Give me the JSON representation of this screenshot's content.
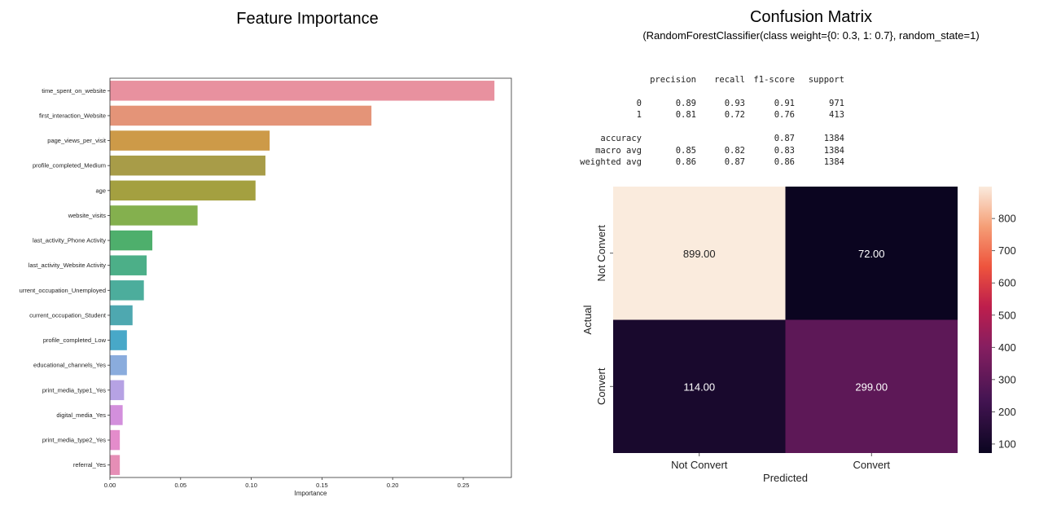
{
  "feature_importance": {
    "title": "Feature Importance",
    "chart_data": {
      "type": "bar",
      "orientation": "horizontal",
      "title": "Feature Importance",
      "xlabel": "Importance",
      "ylabel": "",
      "xlim": [
        0,
        0.284
      ],
      "xticks": [
        "0.00",
        "0.05",
        "0.10",
        "0.15",
        "0.20",
        "0.25"
      ],
      "categories": [
        "time_spent_on_website",
        "first_interaction_Website",
        "page_views_per_visit",
        "profile_completed_Medium",
        "age",
        "website_visits",
        "last_activity_Phone Activity",
        "last_activity_Website Activity",
        "urrent_occupation_Unemployed",
        "current_occupation_Student",
        "profile_completed_Low",
        "educational_channels_Yes",
        "print_media_type1_Yes",
        "digital_media_Yes",
        "print_media_type2_Yes",
        "referral_Yes"
      ],
      "values": [
        0.272,
        0.185,
        0.113,
        0.11,
        0.103,
        0.062,
        0.03,
        0.026,
        0.024,
        0.016,
        0.012,
        0.012,
        0.01,
        0.009,
        0.007,
        0.007
      ],
      "colors": [
        "#e8919f",
        "#e49478",
        "#cd9a48",
        "#a89c48",
        "#a4a040",
        "#84b04e",
        "#4eaf6c",
        "#4caf88",
        "#4cad9c",
        "#4ea8b0",
        "#48a8c8",
        "#8aacdd",
        "#b6a2e4",
        "#d38fdc",
        "#e48ccb",
        "#e68eb6"
      ],
      "grid": false
    }
  },
  "confusion_matrix": {
    "title": "Confusion Matrix",
    "subtitle": "(RandomForestClassifier(class weight={0: 0.3, 1: 0.7}, random_state=1)",
    "report": {
      "headers": [
        "precision",
        "recall",
        "f1-score",
        "support"
      ],
      "rows": [
        {
          "label": "0",
          "values": [
            "0.89",
            "0.93",
            "0.91",
            "971"
          ]
        },
        {
          "label": "1",
          "values": [
            "0.81",
            "0.72",
            "0.76",
            "413"
          ]
        },
        {
          "label": "accuracy",
          "values": [
            "",
            "",
            "0.87",
            "1384"
          ]
        },
        {
          "label": "macro avg",
          "values": [
            "0.85",
            "0.82",
            "0.83",
            "1384"
          ]
        },
        {
          "label": "weighted avg",
          "values": [
            "0.86",
            "0.87",
            "0.86",
            "1384"
          ]
        }
      ]
    },
    "chart_data": {
      "type": "heatmap",
      "title": "Confusion Matrix",
      "x_categories": [
        "Not Convert",
        "Convert"
      ],
      "y_categories": [
        "Not Convert",
        "Convert"
      ],
      "xlabel": "Predicted",
      "ylabel": "Actual",
      "values": [
        [
          899,
          72
        ],
        [
          114,
          299
        ]
      ],
      "labels": [
        [
          "899.00",
          "72.00"
        ],
        [
          "114.00",
          "299.00"
        ]
      ],
      "colorbar": {
        "range": [
          72,
          899
        ],
        "ticks": [
          100,
          200,
          300,
          400,
          500,
          600,
          700,
          800
        ]
      },
      "colormap": "rocket"
    }
  }
}
